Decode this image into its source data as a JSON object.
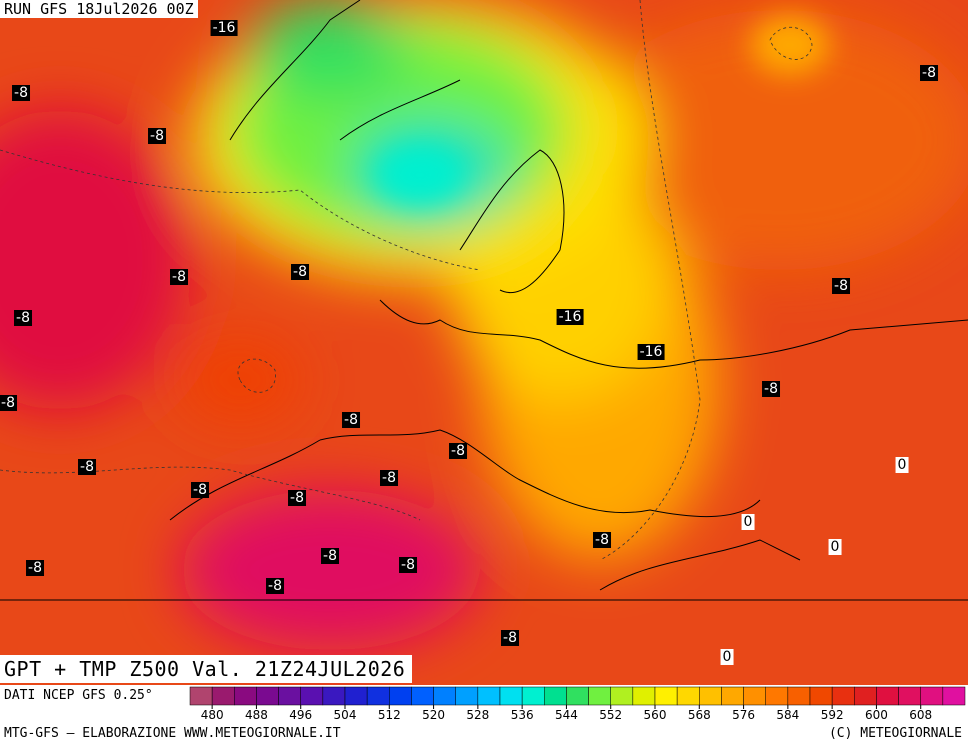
{
  "header": {
    "run": "RUN GFS 18Jul2026 00Z"
  },
  "title": "GPT + TMP Z500 Val. 21Z24JUL2026",
  "source": "DATI NCEP GFS 0.25°",
  "credits": {
    "left": "MTG-GFS — ELABORAZIONE WWW.METEOGIORNALE.IT",
    "right": "(C) METEOGIORNALE"
  },
  "colorbar": {
    "range": [
      476,
      616
    ],
    "ticks": [
      480,
      488,
      496,
      504,
      512,
      520,
      528,
      536,
      544,
      552,
      560,
      568,
      576,
      584,
      592,
      600,
      608
    ],
    "colors": [
      "#b0446e",
      "#9a1a6e",
      "#8a0a80",
      "#7a0a90",
      "#6a10a0",
      "#5a10b0",
      "#3a18c0",
      "#2020d0",
      "#1030e0",
      "#0040f0",
      "#0060ff",
      "#0080ff",
      "#00a0ff",
      "#00c0ff",
      "#00e0f0",
      "#00f0d0",
      "#00e090",
      "#30e060",
      "#70f040",
      "#b0f020",
      "#e0f000",
      "#fff000",
      "#ffd800",
      "#ffc000",
      "#ffa800",
      "#ff9000",
      "#ff7800",
      "#f86000",
      "#f04800",
      "#e83010",
      "#e02020",
      "#e01040",
      "#e01060",
      "#e01080",
      "#e010a0"
    ]
  },
  "temperature_labels": [
    -16,
    -8,
    -8,
    -8,
    -8,
    -8,
    -8,
    -16,
    -8,
    -16,
    -8,
    -8,
    -8,
    -8,
    0,
    -8,
    -8,
    -8,
    -8,
    0,
    -8,
    0,
    -8,
    -8,
    -8,
    -8,
    -8,
    0
  ]
}
